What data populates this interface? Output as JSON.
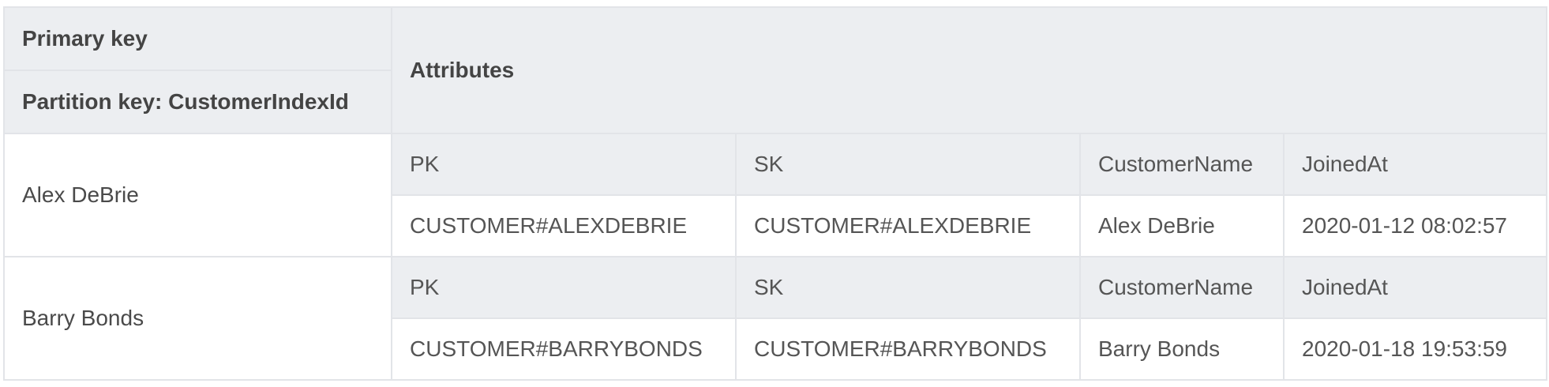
{
  "header": {
    "primary_key": "Primary key",
    "partition_key": "Partition key: CustomerIndexId",
    "attributes": "Attributes"
  },
  "items": [
    {
      "partition_value": "Alex DeBrie",
      "attribute_names": [
        "PK",
        "SK",
        "CustomerName",
        "JoinedAt"
      ],
      "attribute_values": [
        "CUSTOMER#ALEXDEBRIE",
        "CUSTOMER#ALEXDEBRIE",
        "Alex DeBrie",
        "2020-01-12 08:02:57"
      ]
    },
    {
      "partition_value": "Barry Bonds",
      "attribute_names": [
        "PK",
        "SK",
        "CustomerName",
        "JoinedAt"
      ],
      "attribute_values": [
        "CUSTOMER#BARRYBONDS",
        "CUSTOMER#BARRYBONDS",
        "Barry Bonds",
        "2020-01-18 19:53:59"
      ]
    }
  ],
  "colors": {
    "header_bg": "#eceef1",
    "border": "#e2e4e8",
    "text": "#4a4a4a"
  }
}
